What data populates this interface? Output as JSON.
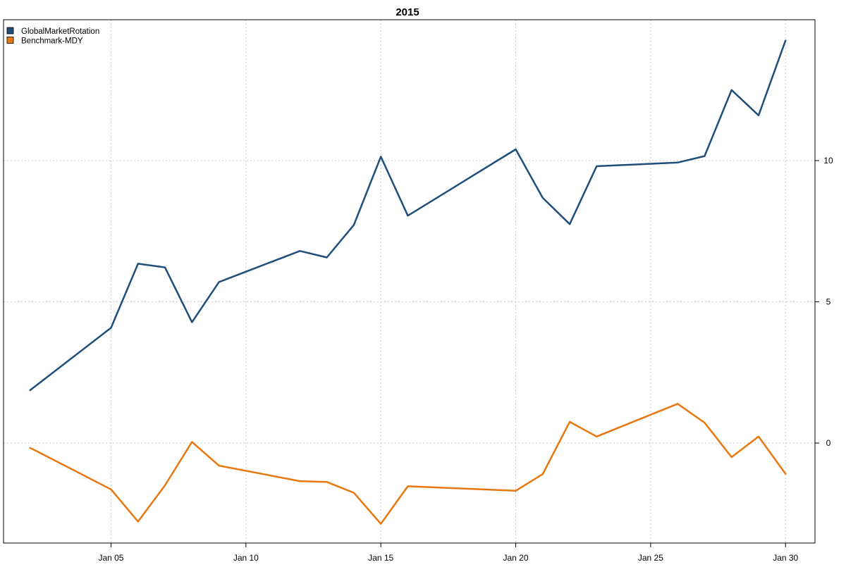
{
  "chart_data": {
    "type": "line",
    "title": "2015",
    "xlabel": "",
    "ylabel": "",
    "grid": true,
    "legend_position": "top-left",
    "y_axis_side": "right",
    "x_ticks": [
      "Jan 05",
      "Jan 10",
      "Jan 15",
      "Jan 20",
      "Jan 25",
      "Jan 30"
    ],
    "x_tick_dates": [
      "2015-01-05",
      "2015-01-10",
      "2015-01-15",
      "2015-01-20",
      "2015-01-25",
      "2015-01-30"
    ],
    "y_ticks": [
      0,
      5,
      10
    ],
    "xlim": [
      "2015-01-01",
      "2015-01-31"
    ],
    "ylim": [
      -3.6,
      15
    ],
    "x": [
      "2015-01-02",
      "2015-01-05",
      "2015-01-06",
      "2015-01-07",
      "2015-01-08",
      "2015-01-09",
      "2015-01-12",
      "2015-01-13",
      "2015-01-14",
      "2015-01-15",
      "2015-01-16",
      "2015-01-20",
      "2015-01-21",
      "2015-01-22",
      "2015-01-23",
      "2015-01-26",
      "2015-01-27",
      "2015-01-28",
      "2015-01-29",
      "2015-01-30"
    ],
    "series": [
      {
        "name": "GlobalMarketRotation",
        "color": "#1F4E79",
        "values": [
          1.87,
          4.08,
          6.35,
          6.22,
          4.28,
          5.7,
          6.8,
          6.57,
          7.72,
          10.14,
          8.05,
          10.4,
          8.68,
          7.75,
          9.8,
          9.93,
          10.16,
          12.5,
          11.6,
          14.25
        ]
      },
      {
        "name": "Benchmark-MDY",
        "color": "#E8770F",
        "values": [
          -0.17,
          -1.64,
          -2.78,
          -1.5,
          0.04,
          -0.8,
          -1.35,
          -1.38,
          -1.76,
          -2.86,
          -1.53,
          -1.69,
          -1.1,
          0.75,
          0.23,
          1.39,
          0.72,
          -0.5,
          0.23,
          -1.09
        ]
      }
    ]
  }
}
